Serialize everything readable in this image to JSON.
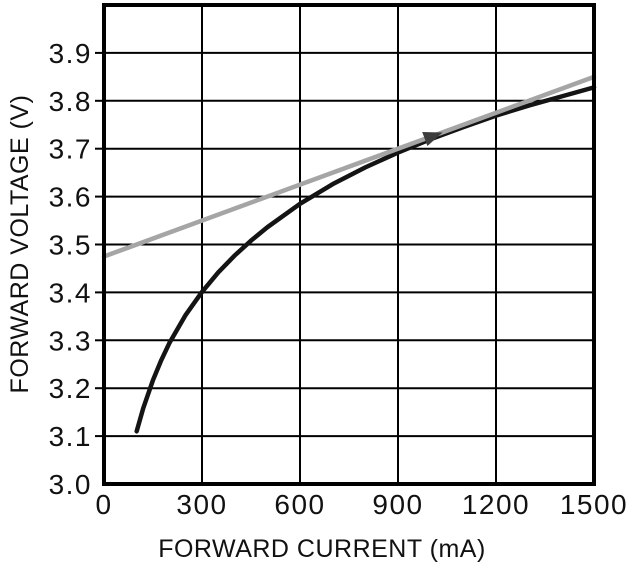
{
  "figure": {
    "background": "#ffffff",
    "frame_color": "#000000",
    "grid_color": "#000000",
    "text_color": "#111111"
  },
  "chart_data": {
    "type": "line",
    "title": "",
    "xlabel": "FORWARD CURRENT (mA)",
    "ylabel": "FORWARD VOLTAGE (V)",
    "xlim": [
      0,
      1500
    ],
    "ylim": [
      3.0,
      4.0
    ],
    "x_ticks": [
      0,
      300,
      600,
      900,
      1200,
      1500
    ],
    "x_tick_labels": [
      "0",
      "300",
      "600",
      "900",
      "1200",
      "1500"
    ],
    "y_ticks": [
      3.0,
      3.1,
      3.2,
      3.3,
      3.4,
      3.5,
      3.6,
      3.7,
      3.8,
      3.9
    ],
    "y_tick_labels": [
      "3.0",
      "3.1",
      "3.2",
      "3.3",
      "3.4",
      "3.5",
      "3.6",
      "3.7",
      "3.8",
      "3.9"
    ],
    "grid": "on",
    "legend": "none",
    "series": [
      {
        "name": "measured-forward-voltage-curve",
        "color": "#141414",
        "stroke_width": 4.5,
        "points": [
          [
            100,
            3.11
          ],
          [
            120,
            3.158
          ],
          [
            150,
            3.217
          ],
          [
            175,
            3.258
          ],
          [
            200,
            3.294
          ],
          [
            250,
            3.353
          ],
          [
            300,
            3.401
          ],
          [
            350,
            3.442
          ],
          [
            400,
            3.477
          ],
          [
            450,
            3.508
          ],
          [
            500,
            3.536
          ],
          [
            600,
            3.585
          ],
          [
            700,
            3.626
          ],
          [
            800,
            3.661
          ],
          [
            900,
            3.692
          ],
          [
            1000,
            3.72
          ],
          [
            1100,
            3.745
          ],
          [
            1200,
            3.769
          ],
          [
            1300,
            3.79
          ],
          [
            1400,
            3.809
          ],
          [
            1500,
            3.828
          ]
        ]
      },
      {
        "name": "linear-approximation-line",
        "color": "#a5a5a5",
        "stroke_width": 4.5,
        "points": [
          [
            0,
            3.475
          ],
          [
            1500,
            3.85
          ]
        ]
      }
    ],
    "annotations": [
      {
        "type": "arrowhead",
        "name": "tangent-point-arrowhead",
        "at": [
          1005,
          3.726
        ],
        "along": "linear-approximation-line",
        "color": "#3c3c3c"
      }
    ]
  }
}
